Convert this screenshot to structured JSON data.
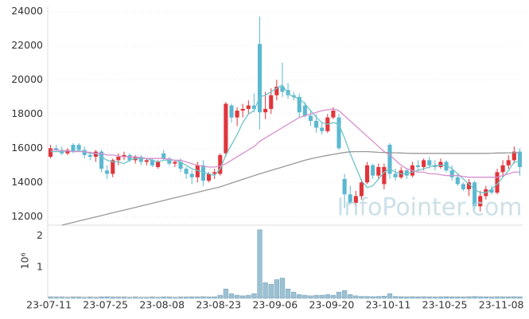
{
  "chart_data": [
    {
      "type": "candlestick",
      "ylim": [
        11500,
        24300
      ],
      "yticks": [
        12000,
        14000,
        16000,
        18000,
        20000,
        22000,
        24000
      ],
      "grid": true,
      "up_color": "#e0353b",
      "down_color": "#5bb8d1",
      "annotation": "InfoPointer.com",
      "open": [
        15500,
        16000,
        15900,
        15700,
        16200,
        16200,
        15900,
        15600,
        15500,
        15800,
        14700,
        14500,
        15300,
        15500,
        15600,
        15300,
        15500,
        15200,
        15300,
        14900,
        15700,
        15400,
        15100,
        15200,
        14800,
        14500,
        14300,
        15000,
        14100,
        14500,
        14500,
        15700,
        18500,
        17800,
        18200,
        18300,
        18500,
        22100,
        18100,
        18300,
        19100,
        19600,
        19400,
        19100,
        19000,
        18500,
        17900,
        17600,
        17200,
        17000,
        17800,
        17800,
        14200,
        13300,
        12800,
        13200,
        14000,
        15000,
        14400,
        13900,
        16200,
        14500,
        14300,
        14700,
        14400,
        15000,
        14900,
        15300,
        15000,
        14900,
        15200,
        14700,
        14300,
        13900,
        13600,
        14000,
        12600,
        13200,
        13600,
        13400,
        14600,
        15000,
        15300,
        15800
      ],
      "high": [
        16200,
        16200,
        16100,
        16000,
        16300,
        16300,
        16100,
        15800,
        15900,
        15900,
        15000,
        15400,
        15700,
        15800,
        15700,
        15600,
        15600,
        15400,
        15400,
        15300,
        15900,
        15500,
        15300,
        15400,
        14900,
        14700,
        15200,
        15300,
        14600,
        14800,
        15700,
        18700,
        18600,
        18400,
        18600,
        18800,
        19200,
        23700,
        19300,
        19500,
        20000,
        21000,
        19800,
        19300,
        19200,
        18700,
        18200,
        18000,
        17500,
        18000,
        18400,
        18000,
        14500,
        13800,
        13500,
        14200,
        15200,
        15100,
        15100,
        15100,
        16300,
        14800,
        14900,
        14800,
        15200,
        15300,
        15400,
        15500,
        15300,
        15400,
        15300,
        15000,
        14500,
        14000,
        14200,
        14100,
        13500,
        13800,
        13800,
        14800,
        15300,
        15600,
        16100,
        16000
      ],
      "low": [
        15400,
        15800,
        15600,
        15600,
        15700,
        15800,
        15400,
        15300,
        15200,
        14600,
        14200,
        14300,
        15000,
        15300,
        15200,
        15100,
        15000,
        15000,
        14900,
        14800,
        15300,
        15000,
        14900,
        14600,
        14200,
        13900,
        14000,
        13800,
        14000,
        14200,
        14400,
        15500,
        17500,
        17300,
        17800,
        18000,
        18100,
        17100,
        17700,
        18000,
        18800,
        19000,
        18900,
        18800,
        17800,
        17800,
        17300,
        16900,
        16800,
        16900,
        17700,
        15900,
        12500,
        12700,
        12600,
        13000,
        13900,
        14200,
        14200,
        13600,
        14200,
        14100,
        14200,
        14200,
        14300,
        14700,
        14700,
        14800,
        14700,
        14800,
        14600,
        14100,
        13800,
        13500,
        13200,
        12400,
        12300,
        13000,
        13300,
        13300,
        14300,
        14800,
        15100,
        14400
      ],
      "close": [
        16000,
        15900,
        15700,
        15900,
        15800,
        15900,
        15600,
        15500,
        15800,
        14800,
        14500,
        15300,
        15500,
        15600,
        15300,
        15500,
        15200,
        15300,
        15000,
        15200,
        15400,
        15100,
        15200,
        14800,
        14500,
        14300,
        15000,
        14100,
        14500,
        14600,
        15600,
        18600,
        17800,
        18200,
        18300,
        18500,
        18300,
        18100,
        18300,
        19100,
        19600,
        19300,
        19100,
        19000,
        18100,
        17900,
        17600,
        17200,
        17000,
        17800,
        18200,
        16000,
        13300,
        12800,
        13200,
        14000,
        15000,
        14400,
        14900,
        14900,
        14500,
        14300,
        14700,
        14400,
        15000,
        14900,
        15300,
        15000,
        14900,
        15200,
        14700,
        14300,
        13900,
        13600,
        14000,
        12600,
        13200,
        13600,
        13400,
        14600,
        15000,
        15300,
        15800,
        14900
      ],
      "series": [
        {
          "color": "#6fc4c8",
          "values": [
            15800,
            15800,
            15800,
            15850,
            15800,
            15850,
            15800,
            15700,
            15700,
            15500,
            15300,
            15200,
            15200,
            15100,
            15300,
            15400,
            15400,
            15400,
            15300,
            15200,
            15300,
            15300,
            15300,
            15200,
            15000,
            14800,
            14700,
            14600,
            14500,
            14400,
            14800,
            15600,
            16200,
            16800,
            17500,
            18000,
            18200,
            19000,
            19100,
            19300,
            19500,
            19700,
            19200,
            19000,
            18900,
            18600,
            18200,
            17800,
            17500,
            17400,
            17500,
            17400,
            16600,
            15700,
            14900,
            14100,
            13700,
            13800,
            14200,
            14600,
            14800,
            14600,
            14500,
            14500,
            14600,
            14700,
            14800,
            14900,
            15000,
            15000,
            15000,
            14800,
            14500,
            14200,
            13900,
            13600,
            13400,
            13400,
            13600,
            13900,
            14300,
            14700,
            15200,
            15200
          ]
        },
        {
          "color": "#d68fcd",
          "values": [
            15900,
            15900,
            15850,
            15850,
            15800,
            15800,
            15800,
            15750,
            15700,
            15700,
            15600,
            15600,
            15550,
            15500,
            15500,
            15500,
            15450,
            15400,
            15400,
            15400,
            15400,
            15350,
            15300,
            15300,
            15200,
            15100,
            15000,
            14950,
            14900,
            14900,
            14950,
            15100,
            15300,
            15500,
            15700,
            15900,
            16100,
            16400,
            16600,
            16800,
            17000,
            17200,
            17400,
            17600,
            17800,
            17900,
            18000,
            18100,
            18200,
            18250,
            18300,
            18200,
            17900,
            17600,
            17300,
            17000,
            16700,
            16400,
            16100,
            15800,
            15600,
            15300,
            15000,
            14800,
            14700,
            14600,
            14600,
            14500,
            14500,
            14450,
            14400,
            14400,
            14400,
            14350,
            14300,
            14300,
            14300,
            14300,
            14300,
            14300,
            14400,
            14500,
            14600,
            14600
          ]
        },
        {
          "color": "#999999",
          "values": [
            null,
            null,
            11500,
            11580,
            11660,
            11740,
            11820,
            11900,
            11980,
            12060,
            12140,
            12220,
            12300,
            12380,
            12460,
            12540,
            12620,
            12700,
            12780,
            12860,
            12940,
            13020,
            13100,
            13180,
            13260,
            13340,
            13420,
            13500,
            13580,
            13660,
            13740,
            13850,
            13960,
            14070,
            14180,
            14290,
            14400,
            14500,
            14600,
            14700,
            14800,
            14900,
            15000,
            15100,
            15200,
            15300,
            15380,
            15450,
            15520,
            15580,
            15640,
            15700,
            15750,
            15790,
            15800,
            15800,
            15800,
            15780,
            15760,
            15750,
            15740,
            15730,
            15720,
            15710,
            15700,
            15700,
            15700,
            15700,
            15700,
            15700,
            15700,
            15700,
            15700,
            15700,
            15700,
            15700,
            15700,
            15700,
            15710,
            15720,
            15720,
            15730,
            15730,
            15730
          ]
        }
      ]
    },
    {
      "type": "bar",
      "y_label": "10⁶",
      "ylim": [
        0,
        2.4
      ],
      "yticks": [
        1,
        2
      ],
      "color": "#9cc1d2",
      "categories": [
        "23-07-11",
        null,
        null,
        null,
        null,
        null,
        null,
        null,
        null,
        null,
        "23-07-25",
        null,
        null,
        null,
        null,
        null,
        null,
        null,
        null,
        null,
        "23-08-08",
        null,
        null,
        null,
        null,
        null,
        null,
        null,
        null,
        null,
        "23-08-23",
        null,
        null,
        null,
        null,
        null,
        null,
        null,
        null,
        null,
        "23-09-06",
        null,
        null,
        null,
        null,
        null,
        null,
        null,
        null,
        null,
        "23-09-20",
        null,
        null,
        null,
        null,
        null,
        null,
        null,
        null,
        null,
        "23-10-11",
        null,
        null,
        null,
        null,
        null,
        null,
        null,
        null,
        null,
        "23-10-25",
        null,
        null,
        null,
        null,
        null,
        null,
        null,
        null,
        null,
        "23-11-08",
        null,
        null,
        null
      ],
      "values": [
        0.04,
        0.03,
        0.03,
        0.02,
        0.03,
        0.03,
        0.02,
        0.03,
        0.02,
        0.04,
        0.05,
        0.03,
        0.03,
        0.03,
        0.02,
        0.03,
        0.02,
        0.02,
        0.03,
        0.02,
        0.04,
        0.03,
        0.02,
        0.03,
        0.03,
        0.04,
        0.03,
        0.05,
        0.03,
        0.04,
        0.1,
        0.3,
        0.15,
        0.1,
        0.08,
        0.1,
        0.15,
        2.2,
        0.5,
        0.45,
        0.6,
        0.65,
        0.3,
        0.2,
        0.12,
        0.1,
        0.08,
        0.1,
        0.1,
        0.12,
        0.1,
        0.2,
        0.25,
        0.12,
        0.08,
        0.06,
        0.06,
        0.05,
        0.06,
        0.07,
        0.15,
        0.06,
        0.05,
        0.04,
        0.05,
        0.04,
        0.05,
        0.04,
        0.03,
        0.04,
        0.05,
        0.04,
        0.04,
        0.03,
        0.05,
        0.06,
        0.05,
        0.04,
        0.03,
        0.05,
        0.04,
        0.04,
        0.05,
        0.04
      ]
    }
  ]
}
